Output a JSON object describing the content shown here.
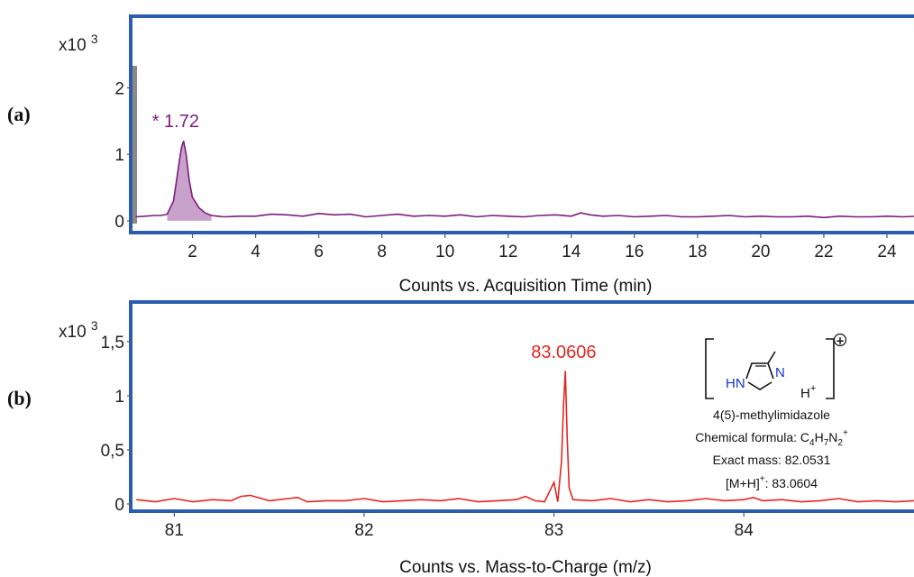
{
  "panel_a": {
    "label": "(a)",
    "scale": "x10 3",
    "peak_label": "* 1.72",
    "xlabel": "Counts vs. Acquisition Time (min)"
  },
  "panel_b": {
    "label": "(b)",
    "scale": "x10 3",
    "peak_label": "83.0606",
    "xlabel": "Counts vs. Mass-to-Charge (m/z)",
    "compound": {
      "name": "4(5)-methylimidazole",
      "formula_prefix": "Chemical formula: ",
      "formula_C": "C",
      "formula_C_sub": "4",
      "formula_H": "H",
      "formula_H_sub": "7",
      "formula_N": "N",
      "formula_N_sub": "2",
      "formula_charge": "+",
      "exact_mass": "Exact mass: 82.0531",
      "mh_prefix": "[M+H]",
      "mh_sup": "+",
      "mh_value": ": 83.0604",
      "ring_hn": "HN",
      "ring_n": "N",
      "h_plus_H": "H",
      "h_plus_sup": "+",
      "charge_symbol": "+"
    }
  },
  "chart_data": [
    {
      "type": "line",
      "title": "",
      "xlabel": "Counts vs. Acquisition Time (min)",
      "ylabel": "x10 3",
      "xlim": [
        0.1,
        25
      ],
      "ylim": [
        -0.15,
        3.05
      ],
      "xticks": [
        2,
        4,
        6,
        8,
        10,
        12,
        14,
        16,
        18,
        20,
        22,
        24
      ],
      "yticks": [
        0,
        1,
        2
      ],
      "color": "#7b1c7e",
      "fill": "#c9a2cc",
      "annotations": [
        {
          "text": "* 1.72",
          "x": 1.72,
          "y": 1.22
        }
      ],
      "series": [
        {
          "x": [
            0.2,
            0.5,
            0.8,
            1.0,
            1.2,
            1.4,
            1.5,
            1.6,
            1.65,
            1.72,
            1.8,
            1.9,
            2.0,
            2.1,
            2.2,
            2.4,
            2.6,
            2.8,
            3.0,
            3.5,
            4.0,
            4.5,
            5.0,
            5.5,
            6.0,
            6.5,
            7.0,
            7.5,
            8.0,
            8.5,
            9.0,
            9.5,
            10.0,
            10.5,
            11.0,
            11.5,
            12.0,
            12.5,
            13.0,
            13.5,
            14.0,
            14.3,
            14.6,
            15.0,
            15.5,
            16.0,
            16.5,
            17.0,
            17.5,
            18.0,
            18.5,
            19.0,
            19.5,
            20.0,
            20.5,
            21.0,
            21.5,
            22.0,
            22.5,
            23.0,
            23.5,
            24.0,
            24.5,
            25.0
          ],
          "y": [
            0.06,
            0.07,
            0.08,
            0.08,
            0.1,
            0.3,
            0.62,
            0.95,
            1.1,
            1.2,
            1.0,
            0.6,
            0.35,
            0.28,
            0.2,
            0.12,
            0.08,
            0.07,
            0.06,
            0.07,
            0.07,
            0.1,
            0.09,
            0.07,
            0.11,
            0.09,
            0.1,
            0.06,
            0.08,
            0.1,
            0.07,
            0.08,
            0.07,
            0.09,
            0.06,
            0.08,
            0.07,
            0.06,
            0.08,
            0.09,
            0.07,
            0.12,
            0.09,
            0.07,
            0.08,
            0.06,
            0.07,
            0.08,
            0.06,
            0.06,
            0.07,
            0.08,
            0.06,
            0.07,
            0.06,
            0.06,
            0.07,
            0.05,
            0.07,
            0.06,
            0.06,
            0.07,
            0.06,
            0.07
          ]
        }
      ]
    },
    {
      "type": "line",
      "title": "",
      "xlabel": "Counts vs. Mass-to-Charge (m/z)",
      "ylabel": "x10 3",
      "xlim": [
        80.78,
        84.92
      ],
      "ylim": [
        -0.05,
        1.85
      ],
      "xticks": [
        81,
        82,
        83,
        84
      ],
      "yticks": [
        0,
        0.5,
        1,
        1.5
      ],
      "ytick_labels": [
        "0",
        "0,5",
        "1",
        "1,5"
      ],
      "color": "#e52521",
      "annotations": [
        {
          "text": "83.0606",
          "x": 83.0606,
          "y": 1.25
        }
      ],
      "series": [
        {
          "x": [
            80.8,
            80.9,
            81.0,
            81.1,
            81.2,
            81.3,
            81.35,
            81.4,
            81.5,
            81.6,
            81.65,
            81.7,
            81.8,
            81.9,
            82.0,
            82.1,
            82.2,
            82.3,
            82.4,
            82.5,
            82.6,
            82.7,
            82.8,
            82.85,
            82.9,
            82.95,
            83.0,
            83.02,
            83.04,
            83.05,
            83.06,
            83.07,
            83.08,
            83.1,
            83.2,
            83.3,
            83.4,
            83.5,
            83.6,
            83.7,
            83.8,
            83.9,
            84.0,
            84.05,
            84.1,
            84.2,
            84.3,
            84.4,
            84.5,
            84.6,
            84.7,
            84.8,
            84.9
          ],
          "y": [
            0.04,
            0.02,
            0.05,
            0.02,
            0.04,
            0.03,
            0.07,
            0.08,
            0.03,
            0.05,
            0.06,
            0.02,
            0.03,
            0.03,
            0.05,
            0.02,
            0.03,
            0.04,
            0.03,
            0.05,
            0.02,
            0.03,
            0.04,
            0.07,
            0.03,
            0.02,
            0.2,
            0.02,
            0.4,
            0.9,
            1.23,
            0.6,
            0.15,
            0.04,
            0.03,
            0.05,
            0.02,
            0.04,
            0.02,
            0.03,
            0.05,
            0.03,
            0.04,
            0.06,
            0.03,
            0.04,
            0.02,
            0.03,
            0.05,
            0.02,
            0.03,
            0.02,
            0.03
          ]
        }
      ]
    }
  ]
}
